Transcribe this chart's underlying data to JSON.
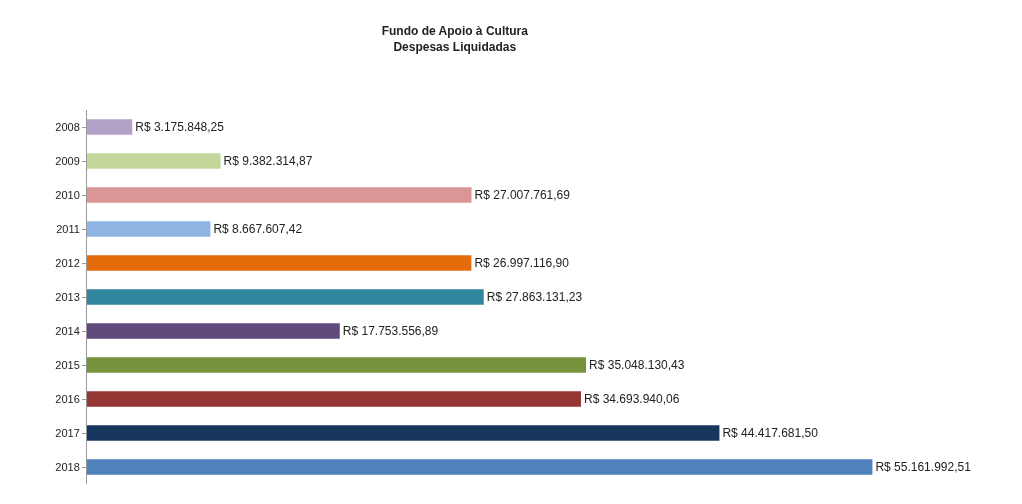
{
  "chart_data": {
    "type": "bar",
    "orientation": "horizontal",
    "title": "Fundo de Apoio à Cultura",
    "subtitle": "Despesas Liquidadas",
    "categories": [
      "2008",
      "2009",
      "2010",
      "2011",
      "2012",
      "2013",
      "2014",
      "2015",
      "2016",
      "2017",
      "2018"
    ],
    "values": [
      3175848.25,
      9382314.87,
      27007761.69,
      8667607.42,
      26997116.9,
      27863131.23,
      17753556.89,
      35048130.43,
      34693940.06,
      44417681.5,
      55161992.51
    ],
    "value_labels": [
      "R$ 3.175.848,25",
      "R$ 9.382.314,87",
      "R$ 27.007.761,69",
      "R$ 8.667.607,42",
      "R$ 26.997.116,90",
      "R$ 27.863.131,23",
      "R$ 17.753.556,89",
      "R$ 35.048.130,43",
      "R$ 34.693.940,06",
      "R$ 44.417.681,50",
      "R$ 55.161.992,51"
    ],
    "colors": [
      "#b3a2c7",
      "#c3d69b",
      "#d99694",
      "#8eb4e3",
      "#e46c0a",
      "#31859c",
      "#604a7b",
      "#77933c",
      "#953735",
      "#17375e",
      "#4f81bd"
    ]
  }
}
